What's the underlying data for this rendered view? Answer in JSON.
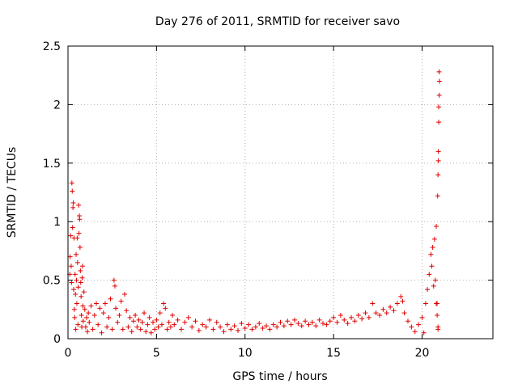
{
  "chart_data": {
    "type": "scatter",
    "title": "Day 276 of 2011, SRMTID for receiver savo",
    "xlabel": "GPS time / hours",
    "ylabel": "SRMTID / TECUs",
    "xlim": [
      0,
      24
    ],
    "ylim": [
      0,
      2.5
    ],
    "xticks": [
      0,
      5,
      10,
      15,
      20
    ],
    "yticks": [
      0,
      0.5,
      1,
      1.5,
      2,
      2.5
    ],
    "xtick_labels": [
      "0",
      "5",
      "10",
      "15",
      "20"
    ],
    "ytick_labels": [
      "0",
      "0.5",
      "1",
      "1.5",
      "2",
      "2.5"
    ],
    "grid": true,
    "marker": "+",
    "color": "#e00000",
    "series": [
      {
        "points": [
          [
            0.1,
            0.55
          ],
          [
            0.12,
            0.7
          ],
          [
            0.15,
            0.88
          ],
          [
            0.18,
            0.62
          ],
          [
            0.2,
            0.48
          ],
          [
            0.22,
            1.33
          ],
          [
            0.24,
            1.26
          ],
          [
            0.26,
            0.95
          ],
          [
            0.28,
            1.12
          ],
          [
            0.3,
            1.16
          ],
          [
            0.32,
            0.42
          ],
          [
            0.34,
            0.86
          ],
          [
            0.36,
            0.25
          ],
          [
            0.38,
            0.18
          ],
          [
            0.4,
            0.55
          ],
          [
            0.42,
            0.38
          ],
          [
            0.44,
            0.08
          ],
          [
            0.46,
            0.72
          ],
          [
            0.48,
            0.5
          ],
          [
            0.5,
            0.3
          ],
          [
            0.52,
            0.86
          ],
          [
            0.54,
            0.65
          ],
          [
            0.56,
            0.12
          ],
          [
            0.58,
            0.44
          ],
          [
            0.6,
            1.14
          ],
          [
            0.62,
            0.9
          ],
          [
            0.64,
            1.05
          ],
          [
            0.66,
            1.02
          ],
          [
            0.68,
            0.78
          ],
          [
            0.7,
            0.58
          ],
          [
            0.72,
            0.48
          ],
          [
            0.74,
            0.36
          ],
          [
            0.76,
            0.2
          ],
          [
            0.78,
            0.1
          ],
          [
            0.8,
            0.52
          ],
          [
            0.82,
            0.62
          ],
          [
            0.84,
            0.28
          ],
          [
            0.86,
            0.15
          ],
          [
            0.9,
            0.4
          ],
          [
            0.95,
            0.25
          ],
          [
            1.0,
            0.1
          ],
          [
            1.05,
            0.18
          ],
          [
            1.1,
            0.06
          ],
          [
            1.15,
            0.22
          ],
          [
            1.2,
            0.14
          ],
          [
            1.3,
            0.28
          ],
          [
            1.4,
            0.08
          ],
          [
            1.5,
            0.2
          ],
          [
            1.6,
            0.3
          ],
          [
            1.7,
            0.12
          ],
          [
            1.8,
            0.26
          ],
          [
            1.9,
            0.05
          ],
          [
            2.0,
            0.22
          ],
          [
            2.1,
            0.3
          ],
          [
            2.2,
            0.1
          ],
          [
            2.3,
            0.18
          ],
          [
            2.4,
            0.34
          ],
          [
            2.5,
            0.08
          ],
          [
            2.6,
            0.5
          ],
          [
            2.65,
            0.45
          ],
          [
            2.7,
            0.26
          ],
          [
            2.8,
            0.14
          ],
          [
            2.9,
            0.2
          ],
          [
            3.0,
            0.32
          ],
          [
            3.1,
            0.08
          ],
          [
            3.2,
            0.38
          ],
          [
            3.3,
            0.24
          ],
          [
            3.4,
            0.1
          ],
          [
            3.5,
            0.18
          ],
          [
            3.6,
            0.06
          ],
          [
            3.7,
            0.15
          ],
          [
            3.8,
            0.2
          ],
          [
            3.9,
            0.1
          ],
          [
            4.0,
            0.16
          ],
          [
            4.1,
            0.08
          ],
          [
            4.2,
            0.14
          ],
          [
            4.3,
            0.22
          ],
          [
            4.4,
            0.06
          ],
          [
            4.5,
            0.12
          ],
          [
            4.6,
            0.18
          ],
          [
            4.7,
            0.05
          ],
          [
            4.8,
            0.14
          ],
          [
            4.9,
            0.08
          ],
          [
            5.0,
            0.16
          ],
          [
            5.1,
            0.1
          ],
          [
            5.2,
            0.22
          ],
          [
            5.3,
            0.12
          ],
          [
            5.4,
            0.3
          ],
          [
            5.5,
            0.26
          ],
          [
            5.6,
            0.08
          ],
          [
            5.7,
            0.14
          ],
          [
            5.8,
            0.1
          ],
          [
            5.9,
            0.2
          ],
          [
            6.0,
            0.12
          ],
          [
            6.2,
            0.16
          ],
          [
            6.4,
            0.08
          ],
          [
            6.6,
            0.14
          ],
          [
            6.8,
            0.18
          ],
          [
            7.0,
            0.1
          ],
          [
            7.2,
            0.15
          ],
          [
            7.4,
            0.07
          ],
          [
            7.6,
            0.12
          ],
          [
            7.8,
            0.1
          ],
          [
            8.0,
            0.16
          ],
          [
            8.2,
            0.08
          ],
          [
            8.4,
            0.14
          ],
          [
            8.6,
            0.1
          ],
          [
            8.8,
            0.06
          ],
          [
            9.0,
            0.12
          ],
          [
            9.2,
            0.08
          ],
          [
            9.4,
            0.11
          ],
          [
            9.6,
            0.07
          ],
          [
            9.8,
            0.13
          ],
          [
            10.0,
            0.09
          ],
          [
            10.2,
            0.12
          ],
          [
            10.4,
            0.08
          ],
          [
            10.6,
            0.1
          ],
          [
            10.8,
            0.13
          ],
          [
            11.0,
            0.09
          ],
          [
            11.2,
            0.11
          ],
          [
            11.4,
            0.08
          ],
          [
            11.6,
            0.12
          ],
          [
            11.8,
            0.1
          ],
          [
            12.0,
            0.14
          ],
          [
            12.2,
            0.11
          ],
          [
            12.4,
            0.15
          ],
          [
            12.6,
            0.12
          ],
          [
            12.8,
            0.16
          ],
          [
            13.0,
            0.13
          ],
          [
            13.2,
            0.11
          ],
          [
            13.4,
            0.15
          ],
          [
            13.6,
            0.12
          ],
          [
            13.8,
            0.14
          ],
          [
            14.0,
            0.11
          ],
          [
            14.2,
            0.16
          ],
          [
            14.4,
            0.13
          ],
          [
            14.6,
            0.12
          ],
          [
            14.8,
            0.15
          ],
          [
            15.0,
            0.18
          ],
          [
            15.2,
            0.14
          ],
          [
            15.4,
            0.2
          ],
          [
            15.6,
            0.16
          ],
          [
            15.8,
            0.13
          ],
          [
            16.0,
            0.18
          ],
          [
            16.2,
            0.15
          ],
          [
            16.4,
            0.2
          ],
          [
            16.6,
            0.17
          ],
          [
            16.8,
            0.22
          ],
          [
            17.0,
            0.18
          ],
          [
            17.2,
            0.3
          ],
          [
            17.4,
            0.22
          ],
          [
            17.6,
            0.2
          ],
          [
            17.8,
            0.25
          ],
          [
            18.0,
            0.22
          ],
          [
            18.2,
            0.27
          ],
          [
            18.4,
            0.24
          ],
          [
            18.6,
            0.3
          ],
          [
            18.8,
            0.36
          ],
          [
            18.9,
            0.32
          ],
          [
            19.0,
            0.22
          ],
          [
            19.2,
            0.15
          ],
          [
            19.4,
            0.1
          ],
          [
            19.6,
            0.06
          ],
          [
            19.8,
            0.12
          ],
          [
            20.0,
            0.18
          ],
          [
            20.1,
            0.05
          ],
          [
            20.2,
            0.3
          ],
          [
            20.3,
            0.42
          ],
          [
            20.4,
            0.55
          ],
          [
            20.5,
            0.72
          ],
          [
            20.55,
            0.62
          ],
          [
            20.6,
            0.78
          ],
          [
            20.65,
            0.45
          ],
          [
            20.7,
            0.85
          ],
          [
            20.75,
            0.5
          ],
          [
            20.8,
            0.3
          ],
          [
            20.85,
            0.2
          ],
          [
            20.9,
            0.08
          ],
          [
            20.92,
            1.6
          ],
          [
            20.94,
            1.85
          ],
          [
            20.96,
            2.28
          ],
          [
            20.98,
            2.2
          ],
          [
            20.8,
            0.96
          ],
          [
            20.88,
            1.22
          ],
          [
            20.9,
            1.4
          ],
          [
            20.92,
            1.52
          ],
          [
            20.94,
            1.98
          ],
          [
            20.97,
            2.08
          ],
          [
            20.85,
            0.3
          ],
          [
            20.9,
            0.1
          ]
        ]
      }
    ]
  }
}
